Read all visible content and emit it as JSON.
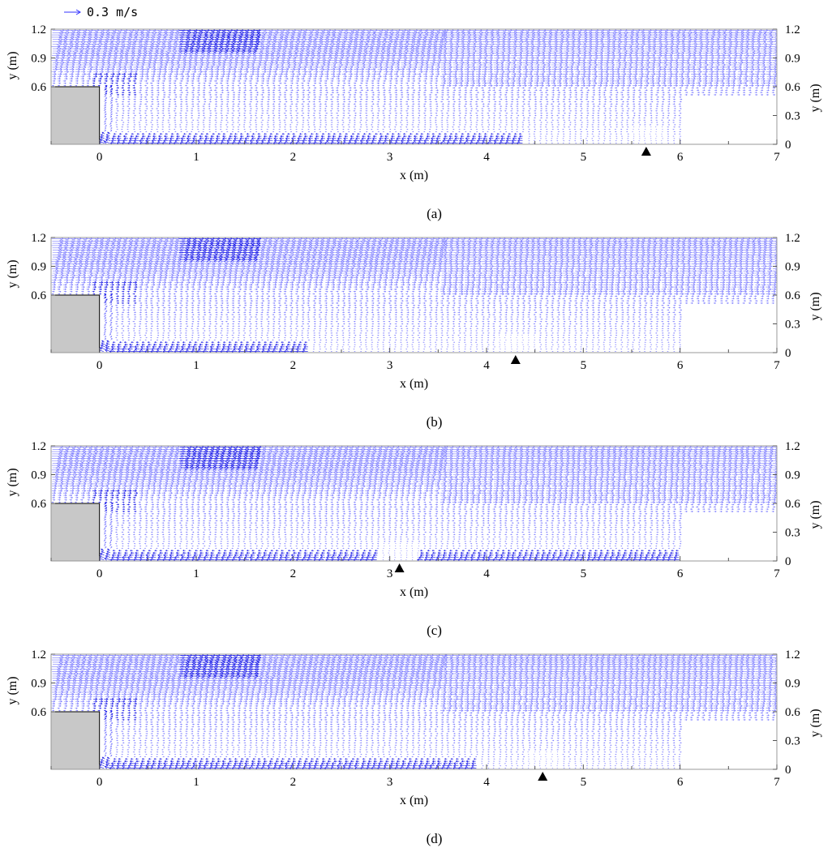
{
  "figure": {
    "legend": {
      "label": "0.3 m/s",
      "reference_speed_mps": 0.3
    },
    "colors": {
      "arrow": "#3333ff",
      "arrow_dense": "#1010e8",
      "obstacle_fill": "#c8c8c8",
      "marker": "#000000"
    }
  },
  "chart_data": [
    {
      "type": "scatter",
      "subtype": "vector-field",
      "caption": "(a)",
      "xlabel": "x (m)",
      "ylabel": "y (m)",
      "ylabel_right": "y (m)",
      "xlim": [
        -0.5,
        7
      ],
      "ylim": [
        0,
        1.2
      ],
      "xticks": [
        0,
        1,
        2,
        3,
        4,
        5,
        6,
        7
      ],
      "yticks_left": [
        0.6,
        0.9,
        1.2
      ],
      "yticks_right": [
        0,
        0.3,
        0.6,
        0.9,
        1.2
      ],
      "obstacle": {
        "x": [
          -0.5,
          0
        ],
        "y": [
          0,
          0.6
        ]
      },
      "reattachment_marker_x": 5.65,
      "near_wall_jet_end_x": 4.4
    },
    {
      "type": "scatter",
      "subtype": "vector-field",
      "caption": "(b)",
      "xlabel": "x (m)",
      "ylabel": "y (m)",
      "ylabel_right": "y (m)",
      "xlim": [
        -0.5,
        7
      ],
      "ylim": [
        0,
        1.2
      ],
      "xticks": [
        0,
        1,
        2,
        3,
        4,
        5,
        6,
        7
      ],
      "yticks_left": [
        0.6,
        0.9,
        1.2
      ],
      "yticks_right": [
        0,
        0.3,
        0.6,
        0.9,
        1.2
      ],
      "obstacle": {
        "x": [
          -0.5,
          0
        ],
        "y": [
          0,
          0.6
        ]
      },
      "reattachment_marker_x": 4.3,
      "near_wall_jet_end_x": 2.2
    },
    {
      "type": "scatter",
      "subtype": "vector-field",
      "caption": "(c)",
      "xlabel": "x (m)",
      "ylabel": "y (m)",
      "ylabel_right": "y (m)",
      "xlim": [
        -0.5,
        7
      ],
      "ylim": [
        0,
        1.2
      ],
      "xticks": [
        0,
        1,
        2,
        3,
        4,
        5,
        6,
        7
      ],
      "yticks_left": [
        0.6,
        0.9,
        1.2
      ],
      "yticks_right": [
        0,
        0.3,
        0.6,
        0.9,
        1.2
      ],
      "obstacle": {
        "x": [
          -0.5,
          0
        ],
        "y": [
          0,
          0.6
        ]
      },
      "reattachment_marker_x": 3.1,
      "near_wall_jet_end_x": 2.9,
      "downstream_jet": [
        3.3,
        6.0
      ]
    },
    {
      "type": "scatter",
      "subtype": "vector-field",
      "caption": "(d)",
      "xlabel": "x (m)",
      "ylabel": "y (m)",
      "ylabel_right": "y (m)",
      "xlim": [
        -0.5,
        7
      ],
      "ylim": [
        0,
        1.2
      ],
      "xticks": [
        0,
        1,
        2,
        3,
        4,
        5,
        6,
        7
      ],
      "yticks_left": [
        0.6,
        0.9,
        1.2
      ],
      "yticks_right": [
        0,
        0.3,
        0.6,
        0.9,
        1.2
      ],
      "obstacle": {
        "x": [
          -0.5,
          0
        ],
        "y": [
          0,
          0.6
        ]
      },
      "reattachment_marker_x": 4.58,
      "near_wall_jet_end_x": 3.9
    }
  ]
}
